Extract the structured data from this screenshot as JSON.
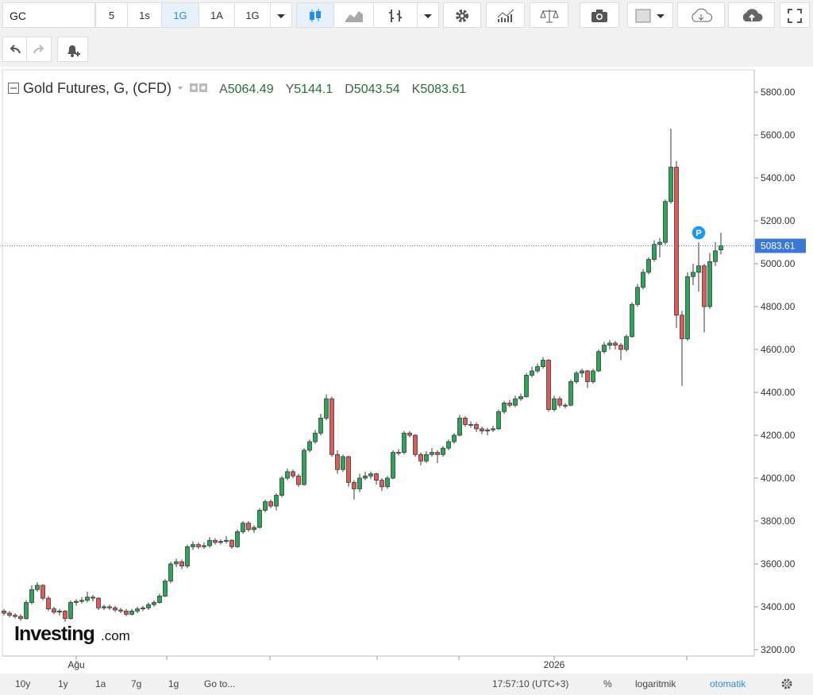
{
  "toolbar": {
    "symbol": "GC",
    "intervals": [
      "5",
      "1s",
      "1G",
      "1A",
      "1G"
    ]
  },
  "bottom_bar": {
    "ranges": [
      "10y",
      "1y",
      "1a",
      "7g",
      "1g"
    ],
    "goto": "Go to...",
    "time": "17:57:10 (UTC+3)",
    "percent": "%",
    "log": "logaritmik",
    "auto": "otomatik"
  },
  "chart_data": {
    "type": "candlestick",
    "title": "Gold Futures, G, (CFD)",
    "ohlc_labels": [
      "A",
      "Y",
      "D",
      "K"
    ],
    "marker": "P",
    "watermark": [
      "Investing",
      ".com"
    ],
    "up_color": "#2aa55a",
    "down_color": "#e05a5a",
    "log_scale": false,
    "ylim": [
      3170,
      5904
    ],
    "yticks": [
      {
        "value": 3200,
        "label": "3200.00"
      },
      {
        "value": 3400,
        "label": "3400.00"
      },
      {
        "value": 3600,
        "label": "3600.00"
      },
      {
        "value": 3800,
        "label": "3800.00"
      },
      {
        "value": 4000,
        "label": "4000.00"
      },
      {
        "value": 4200,
        "label": "4200.00"
      },
      {
        "value": 4400,
        "label": "4400.00"
      },
      {
        "value": 4600,
        "label": "4600.00"
      },
      {
        "value": 4800,
        "label": "4800.00"
      },
      {
        "value": 5000,
        "label": "5000.00"
      },
      {
        "value": 5200,
        "label": "5200.00"
      },
      {
        "value": 5400,
        "label": "5400.00"
      },
      {
        "value": 5600,
        "label": "5600.00"
      },
      {
        "value": 5800,
        "label": "5800.00"
      }
    ],
    "categories": [
      null,
      null,
      null,
      null,
      null,
      null,
      null,
      null,
      null,
      null,
      null,
      null,
      null,
      "Ağu",
      null,
      null,
      null,
      null,
      null,
      null,
      null,
      null,
      null,
      null,
      null,
      null,
      null,
      null,
      null,
      null,
      null,
      null,
      null,
      null,
      null,
      null,
      null,
      null,
      null,
      null,
      null,
      null,
      null,
      null,
      null,
      null,
      null,
      null,
      null,
      null,
      null,
      null,
      null,
      null,
      null,
      null,
      null,
      null,
      null,
      null,
      null,
      null,
      null,
      null,
      null,
      null,
      null,
      null,
      null,
      null,
      null,
      null,
      null,
      null,
      null,
      null,
      null,
      null,
      null,
      null,
      null,
      null,
      null,
      null,
      null,
      null,
      null,
      null,
      null,
      null,
      null,
      null,
      null,
      null,
      null,
      null,
      null,
      null,
      null,
      "2026",
      null,
      null,
      null,
      null,
      null,
      null,
      null,
      null,
      null,
      null,
      null,
      null,
      null,
      null,
      null,
      null,
      null,
      null,
      null,
      null,
      null,
      null,
      null,
      null,
      null,
      null,
      null,
      null,
      null,
      null
    ],
    "candles": [
      [
        3380,
        3390,
        3360,
        3370
      ],
      [
        3370,
        3380,
        3350,
        3360
      ],
      [
        3360,
        3370,
        3345,
        3355
      ],
      [
        3355,
        3365,
        3335,
        3345
      ],
      [
        3345,
        3430,
        3340,
        3420
      ],
      [
        3420,
        3500,
        3410,
        3480
      ],
      [
        3480,
        3515,
        3470,
        3500
      ],
      [
        3500,
        3505,
        3430,
        3440
      ],
      [
        3440,
        3450,
        3380,
        3390
      ],
      [
        3390,
        3400,
        3365,
        3375
      ],
      [
        3375,
        3390,
        3360,
        3380
      ],
      [
        3380,
        3385,
        3330,
        3345
      ],
      [
        3345,
        3430,
        3340,
        3420
      ],
      [
        3420,
        3435,
        3405,
        3425
      ],
      [
        3425,
        3445,
        3415,
        3430
      ],
      [
        3430,
        3470,
        3420,
        3445
      ],
      [
        3445,
        3455,
        3425,
        3440
      ],
      [
        3440,
        3445,
        3385,
        3395
      ],
      [
        3395,
        3410,
        3385,
        3400
      ],
      [
        3400,
        3410,
        3385,
        3395
      ],
      [
        3395,
        3405,
        3375,
        3385
      ],
      [
        3385,
        3395,
        3370,
        3380
      ],
      [
        3380,
        3390,
        3355,
        3365
      ],
      [
        3365,
        3390,
        3360,
        3380
      ],
      [
        3380,
        3400,
        3370,
        3390
      ],
      [
        3390,
        3405,
        3380,
        3395
      ],
      [
        3395,
        3420,
        3385,
        3410
      ],
      [
        3410,
        3430,
        3400,
        3420
      ],
      [
        3420,
        3460,
        3415,
        3450
      ],
      [
        3450,
        3530,
        3445,
        3520
      ],
      [
        3520,
        3610,
        3510,
        3600
      ],
      [
        3600,
        3625,
        3585,
        3610
      ],
      [
        3610,
        3620,
        3575,
        3590
      ],
      [
        3590,
        3690,
        3580,
        3680
      ],
      [
        3680,
        3705,
        3665,
        3690
      ],
      [
        3690,
        3700,
        3670,
        3680
      ],
      [
        3680,
        3700,
        3670,
        3685
      ],
      [
        3685,
        3725,
        3675,
        3710
      ],
      [
        3710,
        3720,
        3690,
        3700
      ],
      [
        3700,
        3715,
        3690,
        3705
      ],
      [
        3705,
        3730,
        3695,
        3710
      ],
      [
        3710,
        3715,
        3670,
        3680
      ],
      [
        3680,
        3760,
        3675,
        3750
      ],
      [
        3750,
        3800,
        3740,
        3790
      ],
      [
        3790,
        3800,
        3750,
        3760
      ],
      [
        3760,
        3780,
        3745,
        3770
      ],
      [
        3770,
        3860,
        3765,
        3850
      ],
      [
        3850,
        3900,
        3840,
        3890
      ],
      [
        3890,
        3900,
        3860,
        3870
      ],
      [
        3870,
        3930,
        3850,
        3920
      ],
      [
        3920,
        4010,
        3910,
        4000
      ],
      [
        4000,
        4045,
        3990,
        4030
      ],
      [
        4030,
        4040,
        4000,
        4010
      ],
      [
        4010,
        4020,
        3960,
        3970
      ],
      [
        3970,
        4140,
        3965,
        4130
      ],
      [
        4130,
        4180,
        4120,
        4170
      ],
      [
        4170,
        4225,
        4160,
        4210
      ],
      [
        4210,
        4300,
        4200,
        4280
      ],
      [
        4280,
        4390,
        4270,
        4370
      ],
      [
        4370,
        4380,
        4100,
        4110
      ],
      [
        4110,
        4130,
        4020,
        4040
      ],
      [
        4040,
        4110,
        4030,
        4100
      ],
      [
        4100,
        4105,
        3960,
        3980
      ],
      [
        3980,
        3990,
        3900,
        3950
      ],
      [
        3950,
        4020,
        3935,
        4000
      ],
      [
        4000,
        4030,
        3990,
        4010
      ],
      [
        4010,
        4030,
        3995,
        4020
      ],
      [
        4020,
        4025,
        3970,
        3990
      ],
      [
        3990,
        4000,
        3940,
        3960
      ],
      [
        3960,
        4010,
        3950,
        4000
      ],
      [
        4000,
        4130,
        3995,
        4120
      ],
      [
        4120,
        4135,
        4105,
        4120
      ],
      [
        4120,
        4220,
        4110,
        4210
      ],
      [
        4210,
        4220,
        4190,
        4200
      ],
      [
        4200,
        4205,
        4100,
        4110
      ],
      [
        4110,
        4120,
        4060,
        4080
      ],
      [
        4080,
        4125,
        4070,
        4110
      ],
      [
        4110,
        4140,
        4100,
        4120
      ],
      [
        4120,
        4130,
        4070,
        4110
      ],
      [
        4110,
        4150,
        4100,
        4140
      ],
      [
        4140,
        4180,
        4130,
        4170
      ],
      [
        4170,
        4210,
        4160,
        4200
      ],
      [
        4200,
        4295,
        4195,
        4280
      ],
      [
        4280,
        4290,
        4240,
        4250
      ],
      [
        4250,
        4265,
        4235,
        4250
      ],
      [
        4250,
        4260,
        4215,
        4230
      ],
      [
        4230,
        4240,
        4205,
        4220
      ],
      [
        4220,
        4235,
        4200,
        4225
      ],
      [
        4225,
        4245,
        4215,
        4230
      ],
      [
        4230,
        4320,
        4225,
        4310
      ],
      [
        4310,
        4360,
        4300,
        4350
      ],
      [
        4350,
        4365,
        4330,
        4340
      ],
      [
        4340,
        4385,
        4330,
        4370
      ],
      [
        4370,
        4395,
        4360,
        4380
      ],
      [
        4380,
        4490,
        4375,
        4480
      ],
      [
        4480,
        4520,
        4470,
        4500
      ],
      [
        4500,
        4535,
        4490,
        4520
      ],
      [
        4520,
        4565,
        4510,
        4550
      ],
      [
        4550,
        4555,
        4310,
        4320
      ],
      [
        4320,
        4385,
        4310,
        4370
      ],
      [
        4370,
        4380,
        4330,
        4340
      ],
      [
        4340,
        4350,
        4325,
        4340
      ],
      [
        4340,
        4460,
        4335,
        4450
      ],
      [
        4450,
        4500,
        4440,
        4490
      ],
      [
        4490,
        4510,
        4470,
        4500
      ],
      [
        4500,
        4505,
        4420,
        4450
      ],
      [
        4450,
        4510,
        4440,
        4500
      ],
      [
        4500,
        4600,
        4495,
        4590
      ],
      [
        4590,
        4635,
        4580,
        4620
      ],
      [
        4620,
        4645,
        4600,
        4630
      ],
      [
        4630,
        4640,
        4600,
        4620
      ],
      [
        4620,
        4630,
        4550,
        4600
      ],
      [
        4600,
        4670,
        4590,
        4660
      ],
      [
        4660,
        4820,
        4655,
        4810
      ],
      [
        4810,
        4905,
        4800,
        4890
      ],
      [
        4890,
        4975,
        4880,
        4960
      ],
      [
        4960,
        5030,
        4950,
        5020
      ],
      [
        5020,
        5110,
        5010,
        5090
      ],
      [
        5090,
        5120,
        5030,
        5100
      ],
      [
        5100,
        5300,
        5090,
        5290
      ],
      [
        5290,
        5630,
        5280,
        5450
      ],
      [
        5450,
        5480,
        4700,
        4760
      ],
      [
        4760,
        4780,
        4430,
        4650
      ],
      [
        4650,
        4960,
        4640,
        4940
      ],
      [
        4940,
        5000,
        4900,
        4960
      ],
      [
        4960,
        5100,
        4870,
        4990
      ],
      [
        4990,
        5000,
        4680,
        4800
      ],
      [
        4800,
        5050,
        4790,
        5010
      ],
      [
        5010,
        5100,
        4990,
        5060
      ],
      [
        5064.49,
        5144.1,
        5043.54,
        5083.61
      ]
    ]
  }
}
